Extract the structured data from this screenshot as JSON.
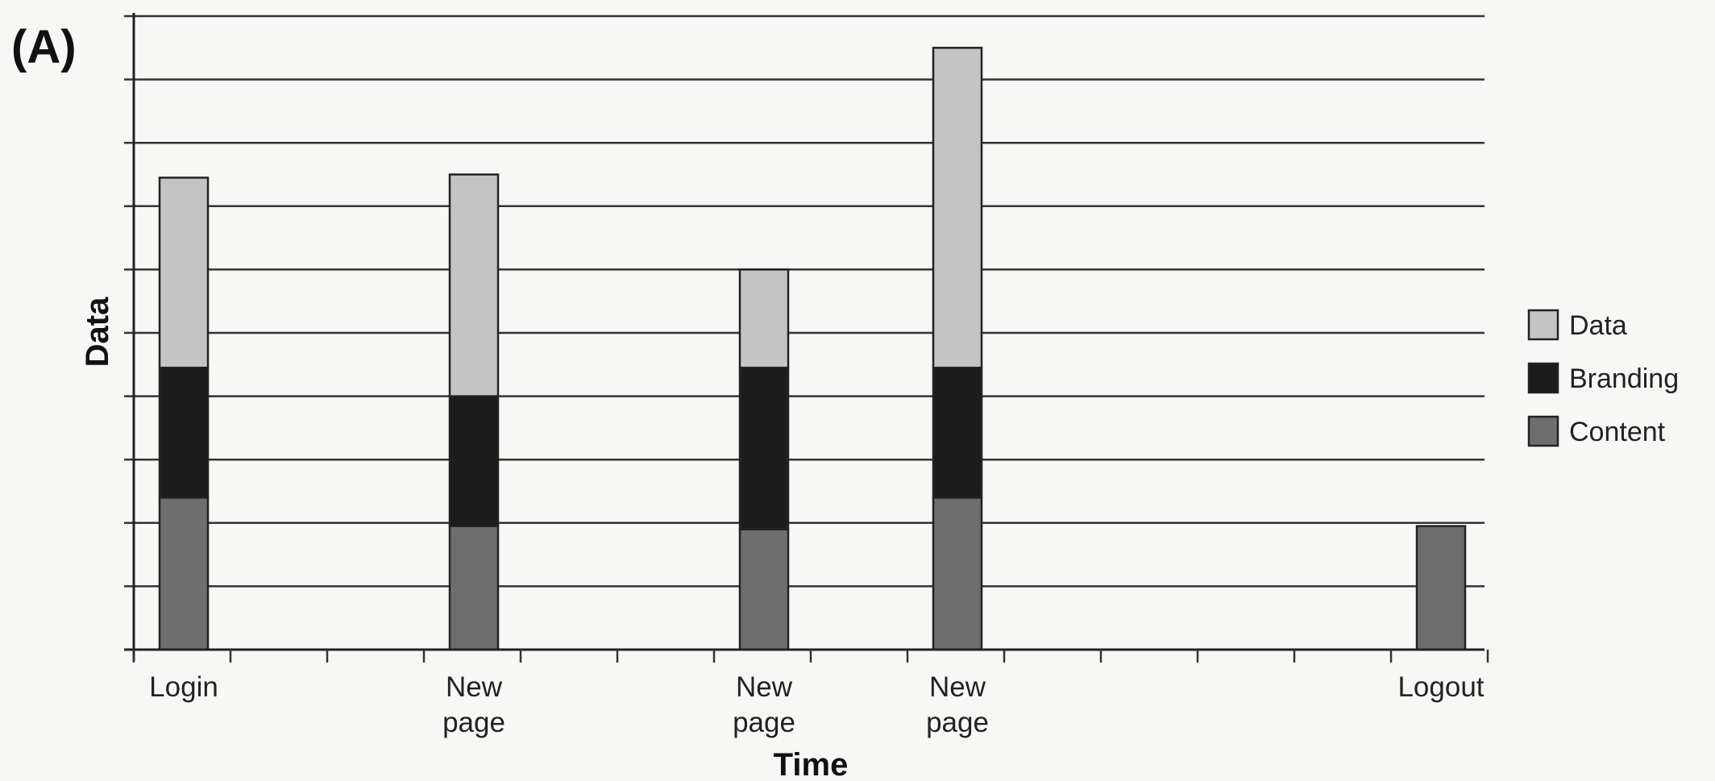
{
  "panel_label": "(A)",
  "chart_data": {
    "type": "bar",
    "stacked": true,
    "xlabel": "Time",
    "ylabel": "Data",
    "ylim": [
      0,
      10
    ],
    "grid": true,
    "legend_position": "right",
    "x_slots": 14,
    "categories": [
      {
        "label": [
          "Login"
        ],
        "slot": 0
      },
      {
        "label": [
          "New",
          "page"
        ],
        "slot": 3
      },
      {
        "label": [
          "New",
          "page"
        ],
        "slot": 6
      },
      {
        "label": [
          "New",
          "page"
        ],
        "slot": 8
      },
      {
        "label": [
          "Logout"
        ],
        "slot": 13
      }
    ],
    "series": [
      {
        "name": "Content",
        "color": "#6e6e6e",
        "values": [
          2.4,
          1.95,
          1.9,
          2.4,
          1.95
        ]
      },
      {
        "name": "Branding",
        "color": "#1c1c1c",
        "values": [
          2.05,
          2.05,
          2.55,
          2.05,
          0
        ]
      },
      {
        "name": "Data",
        "color": "#c4c4c4",
        "values": [
          3.0,
          3.5,
          1.55,
          5.05,
          0
        ]
      }
    ],
    "legend_order": [
      "Data",
      "Branding",
      "Content"
    ]
  }
}
